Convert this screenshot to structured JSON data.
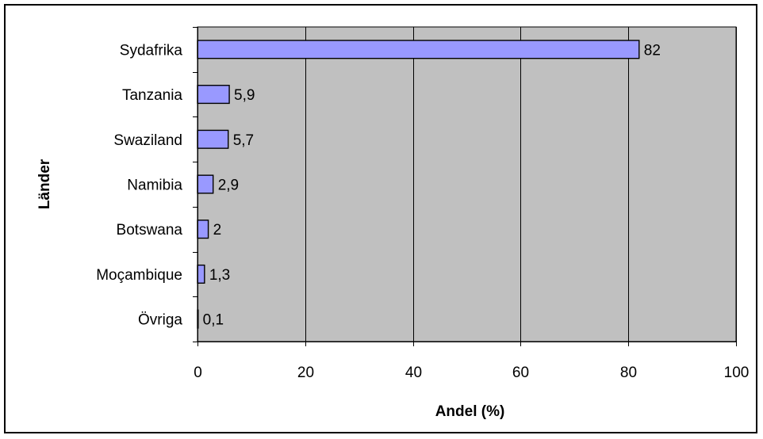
{
  "chart_data": {
    "type": "bar",
    "orientation": "horizontal",
    "categories": [
      "Sydafrika",
      "Tanzania",
      "Swaziland",
      "Namibia",
      "Botswana",
      "Moçambique",
      "Övriga"
    ],
    "values": [
      82,
      5.9,
      5.7,
      2.9,
      2,
      1.3,
      0.1
    ],
    "data_labels": [
      "82",
      "5,9",
      "5,7",
      "2,9",
      "2",
      "1,3",
      "0,1"
    ],
    "xlabel": "Andel (%)",
    "ylabel": "Länder",
    "xlim": [
      0,
      100
    ],
    "x_ticks": [
      0,
      20,
      40,
      60,
      80,
      100
    ],
    "x_tick_labels": [
      "0",
      "20",
      "40",
      "60",
      "80",
      "100"
    ],
    "grid": true,
    "bar_color": "#9999ff",
    "plot_background": "#c0c0c0"
  }
}
